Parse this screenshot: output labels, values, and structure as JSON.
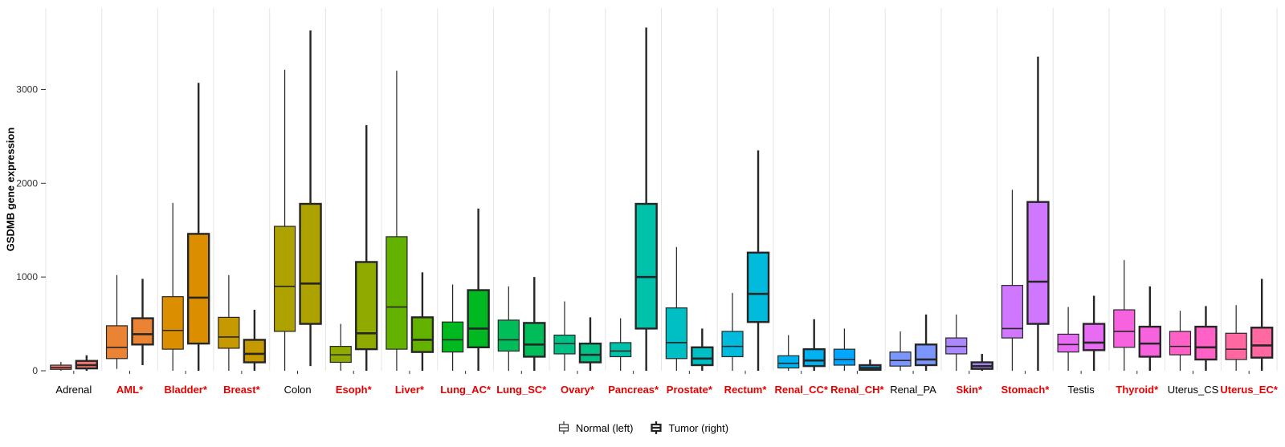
{
  "chart": {
    "ylabel": "GSDMB gene expression",
    "y_ticks": [
      0,
      1000,
      2000,
      3000
    ],
    "ylim": [
      0,
      3800
    ],
    "legend": {
      "normal_label": "Normal (left)",
      "tumor_label": "Tumor (right)"
    },
    "colors": {
      "significant_label": "#e60000",
      "normal_label": "#000000",
      "axis_text": "#333333",
      "box_border": "#262626",
      "gridline": "#e4e4e4"
    }
  },
  "chart_data": {
    "type": "boxplot",
    "title": "",
    "xlabel": "",
    "ylabel": "GSDMB gene expression",
    "grouping": "Each tissue shows Normal (left, thin border) and Tumor (right, thick border); * = significant (red label)",
    "legend_position": "bottom",
    "grid": "vertical-separators",
    "categories": [
      {
        "label": "Adrenal",
        "significant": false,
        "color": "#F8766D",
        "normal": {
          "low": 0,
          "q1": 15,
          "median": 35,
          "q3": 60,
          "high": 95
        },
        "tumor": {
          "low": 0,
          "q1": 25,
          "median": 60,
          "q3": 105,
          "high": 165
        }
      },
      {
        "label": "AML*",
        "significant": true,
        "color": "#EB8335",
        "normal": {
          "low": 20,
          "q1": 130,
          "median": 250,
          "q3": 480,
          "high": 1020
        },
        "tumor": {
          "low": 60,
          "q1": 280,
          "median": 390,
          "q3": 560,
          "high": 980
        }
      },
      {
        "label": "Bladder*",
        "significant": true,
        "color": "#DB8E00",
        "normal": {
          "low": 0,
          "q1": 230,
          "median": 430,
          "q3": 790,
          "high": 1790
        },
        "tumor": {
          "low": 0,
          "q1": 290,
          "median": 780,
          "q3": 1460,
          "high": 3070
        }
      },
      {
        "label": "Breast*",
        "significant": true,
        "color": "#C69900",
        "normal": {
          "low": 0,
          "q1": 240,
          "median": 360,
          "q3": 570,
          "high": 1020
        },
        "tumor": {
          "low": 0,
          "q1": 90,
          "median": 180,
          "q3": 330,
          "high": 650
        }
      },
      {
        "label": "Colon",
        "significant": false,
        "color": "#AEA200",
        "normal": {
          "low": 0,
          "q1": 420,
          "median": 900,
          "q3": 1540,
          "high": 3210
        },
        "tumor": {
          "low": 50,
          "q1": 500,
          "median": 930,
          "q3": 1780,
          "high": 3630
        }
      },
      {
        "label": "Esoph*",
        "significant": true,
        "color": "#90AA00",
        "normal": {
          "low": 0,
          "q1": 90,
          "median": 170,
          "q3": 260,
          "high": 500
        },
        "tumor": {
          "low": 0,
          "q1": 230,
          "median": 400,
          "q3": 1160,
          "high": 2620
        }
      },
      {
        "label": "Liver*",
        "significant": true,
        "color": "#64B200",
        "normal": {
          "low": 0,
          "q1": 230,
          "median": 680,
          "q3": 1430,
          "high": 3200
        },
        "tumor": {
          "low": 0,
          "q1": 200,
          "median": 330,
          "q3": 570,
          "high": 1050
        }
      },
      {
        "label": "Lung_AC*",
        "significant": true,
        "color": "#00B81F",
        "normal": {
          "low": 0,
          "q1": 200,
          "median": 330,
          "q3": 520,
          "high": 920
        },
        "tumor": {
          "low": 0,
          "q1": 250,
          "median": 450,
          "q3": 860,
          "high": 1730
        }
      },
      {
        "label": "Lung_SC*",
        "significant": true,
        "color": "#00BC59",
        "normal": {
          "low": 0,
          "q1": 210,
          "median": 330,
          "q3": 540,
          "high": 900
        },
        "tumor": {
          "low": 0,
          "q1": 150,
          "median": 280,
          "q3": 510,
          "high": 1000
        }
      },
      {
        "label": "Ovary*",
        "significant": true,
        "color": "#00C086",
        "normal": {
          "low": 0,
          "q1": 180,
          "median": 290,
          "q3": 380,
          "high": 740
        },
        "tumor": {
          "low": 0,
          "q1": 90,
          "median": 170,
          "q3": 290,
          "high": 570
        }
      },
      {
        "label": "Pancreas*",
        "significant": true,
        "color": "#00C1A9",
        "normal": {
          "low": 0,
          "q1": 150,
          "median": 210,
          "q3": 300,
          "high": 560
        },
        "tumor": {
          "low": 0,
          "q1": 450,
          "median": 1000,
          "q3": 1780,
          "high": 3660
        }
      },
      {
        "label": "Prostate*",
        "significant": true,
        "color": "#00BFC4",
        "normal": {
          "low": 0,
          "q1": 130,
          "median": 300,
          "q3": 670,
          "high": 1320
        },
        "tumor": {
          "low": 0,
          "q1": 60,
          "median": 130,
          "q3": 250,
          "high": 450
        }
      },
      {
        "label": "Rectum*",
        "significant": true,
        "color": "#00BBDB",
        "normal": {
          "low": 0,
          "q1": 150,
          "median": 260,
          "q3": 420,
          "high": 830
        },
        "tumor": {
          "low": 0,
          "q1": 520,
          "median": 820,
          "q3": 1260,
          "high": 2350
        }
      },
      {
        "label": "Renal_CC*",
        "significant": true,
        "color": "#00B2F1",
        "normal": {
          "low": 0,
          "q1": 30,
          "median": 80,
          "q3": 160,
          "high": 380
        },
        "tumor": {
          "low": 0,
          "q1": 50,
          "median": 110,
          "q3": 230,
          "high": 550
        }
      },
      {
        "label": "Renal_CH*",
        "significant": true,
        "color": "#00A6FF",
        "normal": {
          "low": 0,
          "q1": 60,
          "median": 120,
          "q3": 230,
          "high": 450
        },
        "tumor": {
          "low": 0,
          "q1": 10,
          "median": 30,
          "q3": 60,
          "high": 120
        }
      },
      {
        "label": "Renal_PA",
        "significant": false,
        "color": "#7C96FF",
        "normal": {
          "low": 0,
          "q1": 50,
          "median": 110,
          "q3": 200,
          "high": 420
        },
        "tumor": {
          "low": 0,
          "q1": 60,
          "median": 120,
          "q3": 280,
          "high": 600
        }
      },
      {
        "label": "Skin*",
        "significant": true,
        "color": "#AC88FF",
        "normal": {
          "low": 0,
          "q1": 180,
          "median": 260,
          "q3": 350,
          "high": 600
        },
        "tumor": {
          "low": 0,
          "q1": 20,
          "median": 50,
          "q3": 90,
          "high": 180
        }
      },
      {
        "label": "Stomach*",
        "significant": true,
        "color": "#CF78FF",
        "normal": {
          "low": 0,
          "q1": 350,
          "median": 450,
          "q3": 910,
          "high": 1930
        },
        "tumor": {
          "low": 0,
          "q1": 500,
          "median": 950,
          "q3": 1800,
          "high": 3350
        }
      },
      {
        "label": "Testis",
        "significant": false,
        "color": "#E76BF3",
        "normal": {
          "low": 0,
          "q1": 200,
          "median": 280,
          "q3": 390,
          "high": 680
        },
        "tumor": {
          "low": 0,
          "q1": 220,
          "median": 300,
          "q3": 500,
          "high": 800
        }
      },
      {
        "label": "Thyroid*",
        "significant": true,
        "color": "#F763DF",
        "normal": {
          "low": 0,
          "q1": 250,
          "median": 420,
          "q3": 650,
          "high": 1180
        },
        "tumor": {
          "low": 0,
          "q1": 150,
          "median": 290,
          "q3": 470,
          "high": 900
        }
      },
      {
        "label": "Uterus_CS",
        "significant": false,
        "color": "#FF61C7",
        "normal": {
          "low": 0,
          "q1": 170,
          "median": 260,
          "q3": 420,
          "high": 640
        },
        "tumor": {
          "low": 0,
          "q1": 120,
          "median": 250,
          "q3": 470,
          "high": 690
        }
      },
      {
        "label": "Uterus_EC*",
        "significant": true,
        "color": "#FF68A1",
        "normal": {
          "low": 0,
          "q1": 120,
          "median": 230,
          "q3": 400,
          "high": 700
        },
        "tumor": {
          "low": 0,
          "q1": 140,
          "median": 270,
          "q3": 460,
          "high": 980
        }
      }
    ]
  }
}
